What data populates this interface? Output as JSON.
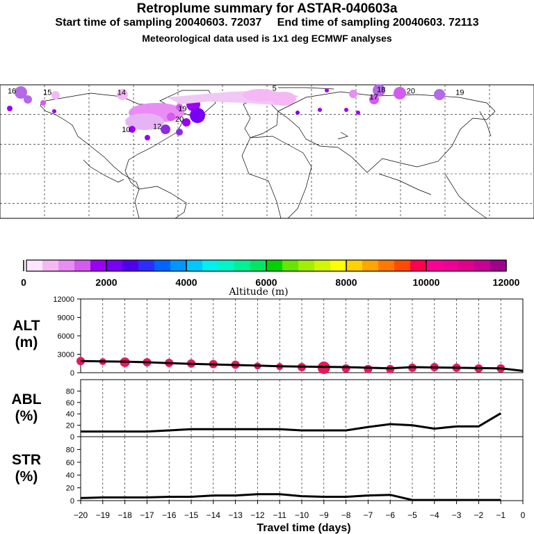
{
  "header": {
    "title": "Retroplume summary for ASTAR-040603a",
    "sampling": "Start time of sampling 20040603. 72037     End time of sampling 20040603. 72113",
    "meteo": "Meteorological data used is 1x1 deg ECMWF analyses"
  },
  "colorbar": {
    "xlabel": "Altitude (m)",
    "tick_labels": [
      "0",
      "2000",
      "4000",
      "6000",
      "8000",
      "10000",
      "12000"
    ],
    "colors": [
      "#ffe6ff",
      "#f5b8f5",
      "#ea8cf5",
      "#d45af0",
      "#9b00f5",
      "#7800f5",
      "#5000f0",
      "#2d2dff",
      "#0064ff",
      "#0096ff",
      "#00c8ff",
      "#00f0f0",
      "#00f5c8",
      "#00f096",
      "#00e664",
      "#00d200",
      "#64e600",
      "#a0f000",
      "#d2f500",
      "#ffff00",
      "#ffd200",
      "#ffa500",
      "#ff7800",
      "#ff4b00",
      "#ff0050",
      "#ff0096",
      "#f00096",
      "#e1008c",
      "#c80096",
      "#a0008c"
    ]
  },
  "map": {
    "labels": [
      {
        "text": "16",
        "lon": -172,
        "lat": 76,
        "color": "#b469e6"
      },
      {
        "text": "15",
        "lon": -148,
        "lat": 75,
        "color": "#f5b8f5"
      },
      {
        "text": "14",
        "lon": -98,
        "lat": 75,
        "color": "#f5b8f5"
      },
      {
        "text": "19",
        "lon": -57,
        "lat": 64,
        "color": "#8a2be2"
      },
      {
        "text": "20",
        "lon": -59,
        "lat": 57,
        "color": "#8a2be2"
      },
      {
        "text": "10",
        "lon": -95,
        "lat": 50,
        "color": "#d45af0"
      },
      {
        "text": "12",
        "lon": -74,
        "lat": 52,
        "color": "#d45af0"
      },
      {
        "text": "5",
        "lon": 5,
        "lat": 78,
        "color": "#f5b8f5"
      },
      {
        "text": "18",
        "lon": 77,
        "lat": 77,
        "color": "#b469e6"
      },
      {
        "text": "20",
        "lon": 97,
        "lat": 76,
        "color": "#d45af0"
      },
      {
        "text": "19",
        "lon": 130,
        "lat": 75,
        "color": "#b469e6"
      },
      {
        "text": "17",
        "lon": 72,
        "lat": 72,
        "color": "#d45af0"
      }
    ]
  },
  "chart_data": [
    {
      "type": "scatter",
      "panel": "ALT",
      "ylabel": "ALT\n(m)",
      "ylim": [
        0,
        12000
      ],
      "yticks": [
        0,
        3000,
        6000,
        9000,
        12000
      ],
      "mean_line": {
        "x": [
          -20,
          -19,
          -18,
          -17,
          -16,
          -15,
          -14,
          -13,
          -12,
          -11,
          -10,
          -9,
          -8,
          -7,
          -6,
          -5,
          -4,
          -3,
          -2,
          -1,
          0
        ],
        "y": [
          1900,
          1850,
          1800,
          1700,
          1550,
          1450,
          1350,
          1250,
          1150,
          1050,
          1000,
          950,
          900,
          800,
          700,
          900,
          850,
          800,
          750,
          700,
          300
        ]
      },
      "points": [
        {
          "x": -20,
          "y": 1900,
          "size": 6
        },
        {
          "x": -19,
          "y": 1800,
          "size": 5
        },
        {
          "x": -18,
          "y": 1700,
          "size": 7
        },
        {
          "x": -17,
          "y": 1700,
          "size": 6
        },
        {
          "x": -16,
          "y": 1600,
          "size": 6
        },
        {
          "x": -15,
          "y": 1500,
          "size": 6
        },
        {
          "x": -14,
          "y": 1400,
          "size": 6
        },
        {
          "x": -13,
          "y": 1300,
          "size": 6
        },
        {
          "x": -12,
          "y": 1100,
          "size": 5
        },
        {
          "x": -11,
          "y": 1000,
          "size": 5
        },
        {
          "x": -10,
          "y": 900,
          "size": 6
        },
        {
          "x": -9,
          "y": 800,
          "size": 9
        },
        {
          "x": -8,
          "y": 700,
          "size": 6
        },
        {
          "x": -7,
          "y": 600,
          "size": 6
        },
        {
          "x": -6,
          "y": 600,
          "size": 6
        },
        {
          "x": -5,
          "y": 800,
          "size": 6
        },
        {
          "x": -4,
          "y": 900,
          "size": 6
        },
        {
          "x": -3,
          "y": 800,
          "size": 6
        },
        {
          "x": -2,
          "y": 700,
          "size": 6
        },
        {
          "x": -1,
          "y": 700,
          "size": 6
        }
      ]
    },
    {
      "type": "line",
      "panel": "ABL",
      "ylabel": "ABL\n(%)",
      "ylim": [
        0,
        100
      ],
      "yticks": [
        0,
        20,
        40,
        60,
        80
      ],
      "x": [
        -20,
        -19,
        -18,
        -17,
        -16,
        -15,
        -14,
        -13,
        -12,
        -11,
        -10,
        -9,
        -8,
        -7,
        -6,
        -5,
        -4,
        -3,
        -2,
        -1
      ],
      "values": [
        9,
        9,
        9,
        9,
        11,
        13,
        13,
        13,
        13,
        13,
        11,
        11,
        11,
        17,
        22,
        20,
        14,
        18,
        18,
        41
      ]
    },
    {
      "type": "line",
      "panel": "STR",
      "ylabel": "STR\n(%)",
      "xlabel": "Travel time (days)",
      "ylim": [
        0,
        100
      ],
      "yticks": [
        0,
        20,
        40,
        60,
        80
      ],
      "xticks": [
        -20,
        -19,
        -18,
        -17,
        -16,
        -15,
        -14,
        -13,
        -12,
        -11,
        -10,
        -9,
        -8,
        -7,
        -6,
        -5,
        -4,
        -3,
        -2,
        -1,
        0
      ],
      "x": [
        -20,
        -19,
        -18,
        -17,
        -16,
        -15,
        -14,
        -13,
        -12,
        -11,
        -10,
        -9,
        -8,
        -7,
        -6,
        -5,
        -4,
        -3,
        -2,
        -1
      ],
      "values": [
        4,
        5,
        5,
        5,
        6,
        6,
        8,
        8,
        10,
        10,
        7,
        6,
        6,
        8,
        9,
        1,
        1,
        1,
        1,
        1
      ]
    }
  ]
}
